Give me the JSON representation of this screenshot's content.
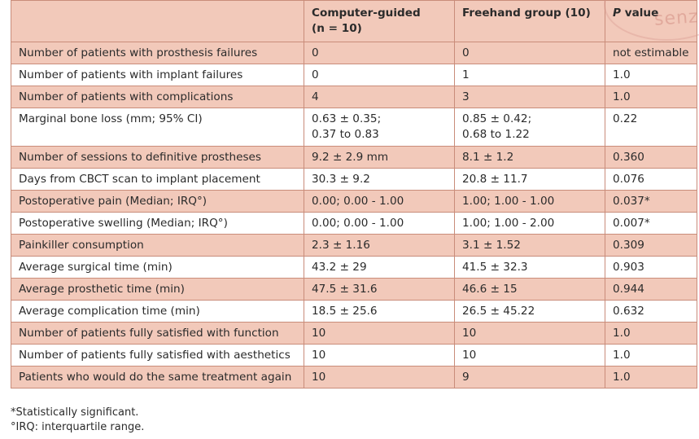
{
  "table": {
    "headers": {
      "col1": "",
      "col2_line1": "Computer-guided",
      "col2_line2": "(n = 10)",
      "col3": "Freehand group (10)",
      "col4_p": "P",
      "col4_rest": " value"
    },
    "rows": [
      {
        "label": "Number of patients with prosthesis failures",
        "cg": "0",
        "fh": "0",
        "p": "not estimable"
      },
      {
        "label": "Number of patients with implant failures",
        "cg": "0",
        "fh": "1",
        "p": "1.0"
      },
      {
        "label": "Number of patients with complications",
        "cg": "4",
        "fh": "3",
        "p": "1.0"
      },
      {
        "label": "Marginal bone loss (mm; 95% CI)",
        "cg": "0.63 ± 0.35;",
        "cg2": "0.37 to 0.83",
        "fh": "0.85 ± 0.42;",
        "fh2": "0.68 to 1.22",
        "p": "0.22"
      },
      {
        "label": "Number of sessions to definitive prostheses",
        "cg": "9.2 ± 2.9 mm",
        "fh": "8.1 ± 1.2",
        "p": "0.360"
      },
      {
        "label": "Days from CBCT scan to implant placement",
        "cg": "30.3 ± 9.2",
        "fh": "20.8 ± 11.7",
        "p": "0.076"
      },
      {
        "label": "Postoperative pain (Median; IRQ°)",
        "cg": "0.00; 0.00 - 1.00",
        "fh": "1.00; 1.00 - 1.00",
        "p": "0.037*"
      },
      {
        "label": "Postoperative swelling (Median; IRQ°)",
        "cg": "0.00; 0.00 - 1.00",
        "fh": "1.00; 1.00 - 2.00",
        "p": "0.007*"
      },
      {
        "label": "Painkiller consumption",
        "cg": "2.3 ± 1.16",
        "fh": "3.1 ± 1.52",
        "p": "0.309"
      },
      {
        "label": "Average surgical time (min)",
        "cg": "43.2 ± 29",
        "fh": "41.5 ± 32.3",
        "p": "0.903"
      },
      {
        "label": "Average prosthetic time (min)",
        "cg": "47.5 ± 31.6",
        "fh": "46.6 ± 15",
        "p": "0.944"
      },
      {
        "label": "Average complication time (min)",
        "cg": "18.5 ± 25.6",
        "fh": "26.5 ± 45.22",
        "p": "0.632"
      },
      {
        "label": "Number of patients fully satisfied with function",
        "cg": "10",
        "fh": "10",
        "p": "1.0"
      },
      {
        "label": "Number of patients fully satisfied with aesthetics",
        "cg": "10",
        "fh": "10",
        "p": "1.0"
      },
      {
        "label": "Patients who would do the same treatment again",
        "cg": "10",
        "fh": "9",
        "p": "1.0"
      }
    ]
  },
  "footnotes": {
    "significant": "*Statistically significant.",
    "irq": "°IRQ: interquartile range."
  },
  "watermark": {
    "text": "senz"
  },
  "colors": {
    "shade": "#f2c9ba",
    "border": "#c98c7a",
    "text": "#2b2b2b"
  }
}
